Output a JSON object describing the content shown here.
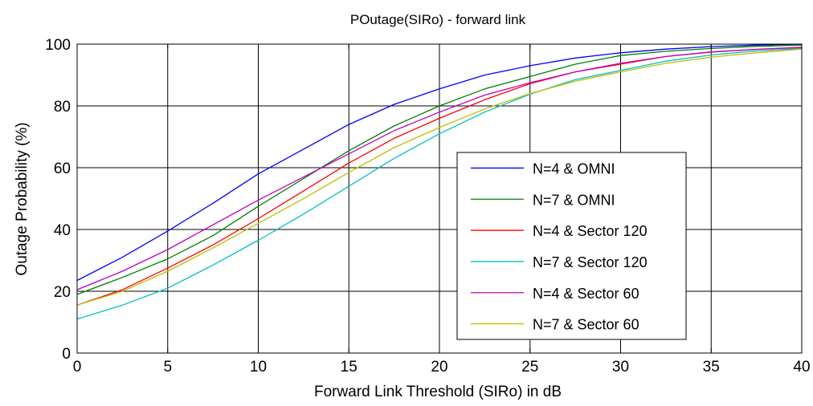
{
  "chart_data": {
    "type": "line",
    "title": "POutage(SIRo) - forward link",
    "xlabel": "Forward Link Threshold (SIRo) in dB",
    "ylabel": "Outage Probability (%)",
    "xlim": [
      0,
      40
    ],
    "ylim": [
      0,
      100
    ],
    "x_ticks": [
      0,
      5,
      10,
      15,
      20,
      25,
      30,
      35,
      40
    ],
    "y_ticks": [
      0,
      20,
      40,
      60,
      80,
      100
    ],
    "x_tick_labels": [
      "0",
      "5",
      "10",
      "15",
      "20",
      "25",
      "30",
      "35",
      "40"
    ],
    "y_tick_labels": [
      "0",
      "20",
      "40",
      "60",
      "80",
      "100"
    ],
    "grid": true,
    "legend_position": "center-right",
    "x": [
      0,
      2.5,
      5,
      7.5,
      10,
      12.5,
      15,
      17.5,
      20,
      22.5,
      25,
      27.5,
      30,
      32.5,
      35,
      37.5,
      40
    ],
    "series": [
      {
        "name": "N=4 & OMNI",
        "color": "#0000ff",
        "values": [
          23.5,
          31,
          39.5,
          48.5,
          58,
          66,
          74,
          80.5,
          85.5,
          90,
          93,
          95.5,
          97.2,
          98.4,
          99.2,
          99.7,
          100
        ]
      },
      {
        "name": "N=7 & OMNI",
        "color": "#008000",
        "values": [
          19,
          24.5,
          30.5,
          38,
          47.5,
          56.5,
          65.5,
          73.5,
          80,
          85.5,
          89.5,
          93.5,
          96.3,
          97.7,
          98.6,
          99.3,
          99.7
        ]
      },
      {
        "name": "N=4 & Sector 120",
        "color": "#ff0000",
        "values": [
          15.5,
          20.5,
          27.5,
          35,
          43.5,
          52.5,
          61.5,
          69.5,
          76,
          82,
          87.2,
          91,
          93.5,
          96,
          97.4,
          98.3,
          99
        ]
      },
      {
        "name": "N=7 & Sector 120",
        "color": "#00bfbf",
        "values": [
          11,
          15.5,
          21,
          28.5,
          36.5,
          45,
          54,
          63,
          71,
          78,
          83.8,
          88.5,
          91.5,
          94.5,
          96.5,
          97.8,
          98.6
        ]
      },
      {
        "name": "N=4 & Sector 60",
        "color": "#bf00bf",
        "values": [
          20.5,
          26.5,
          33.5,
          41.5,
          49.5,
          57,
          64.5,
          72,
          78,
          83.5,
          87.5,
          91,
          93.8,
          96,
          97.5,
          98.3,
          98.9
        ]
      },
      {
        "name": "N=7 & Sector 60",
        "color": "#bfbf00",
        "values": [
          15.5,
          20,
          26.5,
          34,
          42,
          50,
          58.5,
          66.5,
          73,
          79,
          84,
          88,
          91,
          93.8,
          95.8,
          97.2,
          98.4
        ]
      }
    ]
  }
}
